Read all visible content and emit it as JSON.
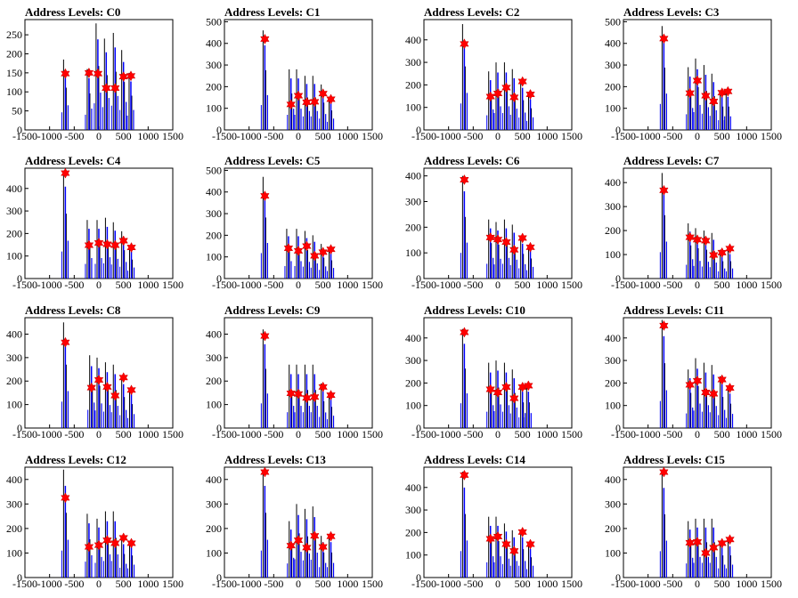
{
  "chart_data": [
    {
      "type": "bar",
      "title": "Address Levels: C0",
      "xlim": [
        -1500,
        1500
      ],
      "ylim": [
        0,
        290
      ],
      "yticks": [
        0,
        50,
        100,
        150,
        200,
        250
      ],
      "xticks": [
        -1500,
        -1000,
        -500,
        0,
        500,
        1000,
        1500
      ],
      "series": [
        {
          "x": [
            -680,
            -200,
            -20,
            150,
            330,
            500,
            650
          ],
          "peak": [
            185,
            160,
            280,
            240,
            255,
            210,
            150
          ],
          "marker": [
            148,
            150,
            148,
            110,
            110,
            140,
            142
          ]
        }
      ]
    },
    {
      "type": "bar",
      "title": "Address Levels: C1",
      "xlim": [
        -1500,
        1500
      ],
      "ylim": [
        0,
        510
      ],
      "yticks": [
        0,
        100,
        200,
        300,
        400,
        500
      ],
      "xticks": [
        -1500,
        -1000,
        -500,
        0,
        500,
        1000,
        1500
      ],
      "series": [
        {
          "x": [
            -680,
            -150,
            0,
            170,
            330,
            500,
            660
          ],
          "peak": [
            460,
            280,
            280,
            250,
            250,
            210,
            150
          ],
          "marker": [
            420,
            118,
            158,
            128,
            130,
            168,
            142
          ]
        }
      ]
    },
    {
      "type": "bar",
      "title": "Address Levels: C2",
      "xlim": [
        -1500,
        1500
      ],
      "ylim": [
        0,
        490
      ],
      "yticks": [
        0,
        100,
        200,
        300,
        400
      ],
      "xticks": [
        -1500,
        -1000,
        -500,
        0,
        500,
        1000,
        1500
      ],
      "series": [
        {
          "x": [
            -680,
            -150,
            0,
            170,
            330,
            500,
            660
          ],
          "peak": [
            470,
            260,
            300,
            300,
            270,
            220,
            160
          ],
          "marker": [
            382,
            148,
            162,
            188,
            145,
            215,
            158
          ]
        }
      ]
    },
    {
      "type": "bar",
      "title": "Address Levels: C3",
      "xlim": [
        -1500,
        1500
      ],
      "ylim": [
        0,
        510
      ],
      "yticks": [
        0,
        100,
        200,
        300,
        400,
        500
      ],
      "xticks": [
        -1500,
        -1000,
        -500,
        0,
        500,
        1000,
        1500
      ],
      "series": [
        {
          "x": [
            -680,
            -150,
            0,
            170,
            330,
            500,
            620
          ],
          "peak": [
            480,
            290,
            330,
            300,
            260,
            180,
            180
          ],
          "marker": [
            422,
            170,
            228,
            158,
            132,
            172,
            178
          ]
        }
      ]
    },
    {
      "type": "bar",
      "title": "Address Levels: C4",
      "xlim": [
        -1500,
        1500
      ],
      "ylim": [
        0,
        490
      ],
      "yticks": [
        0,
        100,
        200,
        300,
        400
      ],
      "xticks": [
        -1500,
        -1000,
        -500,
        0,
        500,
        1000,
        1500
      ],
      "series": [
        {
          "x": [
            -680,
            -200,
            0,
            170,
            330,
            500,
            660
          ],
          "peak": [
            480,
            260,
            260,
            270,
            250,
            210,
            140
          ],
          "marker": [
            468,
            148,
            158,
            152,
            148,
            168,
            138
          ]
        }
      ]
    },
    {
      "type": "bar",
      "title": "Address Levels: C5",
      "xlim": [
        -1500,
        1500
      ],
      "ylim": [
        0,
        510
      ],
      "yticks": [
        0,
        100,
        200,
        300,
        400,
        500
      ],
      "xticks": [
        -1500,
        -1000,
        -500,
        0,
        500,
        1000,
        1500
      ],
      "series": [
        {
          "x": [
            -680,
            -200,
            0,
            170,
            330,
            500,
            660
          ],
          "peak": [
            470,
            230,
            230,
            220,
            200,
            160,
            140
          ],
          "marker": [
            382,
            140,
            128,
            150,
            105,
            122,
            135
          ]
        }
      ]
    },
    {
      "type": "bar",
      "title": "Address Levels: C6",
      "xlim": [
        -1500,
        1500
      ],
      "ylim": [
        0,
        430
      ],
      "yticks": [
        0,
        100,
        200,
        300,
        400
      ],
      "xticks": [
        -1500,
        -1000,
        -500,
        0,
        500,
        1000,
        1500
      ],
      "series": [
        {
          "x": [
            -680,
            -150,
            0,
            170,
            330,
            500,
            660
          ],
          "peak": [
            400,
            230,
            220,
            230,
            210,
            160,
            130
          ],
          "marker": [
            385,
            160,
            152,
            142,
            112,
            158,
            122
          ]
        }
      ]
    },
    {
      "type": "bar",
      "title": "Address Levels: C7",
      "xlim": [
        -1500,
        1500
      ],
      "ylim": [
        0,
        460
      ],
      "yticks": [
        0,
        100,
        200,
        300,
        400
      ],
      "xticks": [
        -1500,
        -1000,
        -500,
        0,
        500,
        1000,
        1500
      ],
      "series": [
        {
          "x": [
            -680,
            -150,
            0,
            170,
            330,
            500,
            660
          ],
          "peak": [
            440,
            230,
            210,
            200,
            190,
            120,
            120
          ],
          "marker": [
            368,
            172,
            162,
            158,
            98,
            108,
            125
          ]
        }
      ]
    },
    {
      "type": "bar",
      "title": "Address Levels: C8",
      "xlim": [
        -1500,
        1500
      ],
      "ylim": [
        0,
        470
      ],
      "yticks": [
        0,
        100,
        200,
        300,
        400
      ],
      "xticks": [
        -1500,
        -1000,
        -500,
        0,
        500,
        1000,
        1500
      ],
      "series": [
        {
          "x": [
            -680,
            -150,
            0,
            170,
            330,
            500,
            660
          ],
          "peak": [
            450,
            310,
            300,
            280,
            270,
            220,
            170
          ],
          "marker": [
            365,
            172,
            205,
            175,
            138,
            215,
            162
          ]
        }
      ]
    },
    {
      "type": "bar",
      "title": "Address Levels: C9",
      "xlim": [
        -1500,
        1500
      ],
      "ylim": [
        0,
        470
      ],
      "yticks": [
        0,
        100,
        200,
        300,
        400
      ],
      "xticks": [
        -1500,
        -1000,
        -500,
        0,
        500,
        1000,
        1500
      ],
      "series": [
        {
          "x": [
            -680,
            -150,
            0,
            170,
            330,
            500,
            660
          ],
          "peak": [
            420,
            270,
            270,
            270,
            270,
            190,
            150
          ],
          "marker": [
            392,
            148,
            145,
            128,
            132,
            175,
            140
          ]
        }
      ]
    },
    {
      "type": "bar",
      "title": "Address Levels: C10",
      "xlim": [
        -1500,
        1500
      ],
      "ylim": [
        0,
        490
      ],
      "yticks": [
        0,
        100,
        200,
        300,
        400
      ],
      "xticks": [
        -1500,
        -1000,
        -500,
        0,
        500,
        1000,
        1500
      ],
      "series": [
        {
          "x": [
            -680,
            -150,
            0,
            170,
            330,
            500,
            620
          ],
          "peak": [
            440,
            290,
            300,
            290,
            260,
            190,
            190
          ],
          "marker": [
            425,
            172,
            158,
            182,
            132,
            182,
            188
          ]
        }
      ]
    },
    {
      "type": "bar",
      "title": "Address Levels: C11",
      "xlim": [
        -1500,
        1500
      ],
      "ylim": [
        0,
        490
      ],
      "yticks": [
        0,
        100,
        200,
        300,
        400
      ],
      "xticks": [
        -1500,
        -1000,
        -500,
        0,
        500,
        1000,
        1500
      ],
      "series": [
        {
          "x": [
            -680,
            -150,
            0,
            170,
            330,
            500,
            660
          ],
          "peak": [
            480,
            260,
            310,
            290,
            280,
            230,
            180
          ],
          "marker": [
            455,
            192,
            210,
            158,
            152,
            215,
            178
          ]
        }
      ]
    },
    {
      "type": "bar",
      "title": "Address Levels: C12",
      "xlim": [
        -1500,
        1500
      ],
      "ylim": [
        0,
        450
      ],
      "yticks": [
        0,
        100,
        200,
        300,
        400
      ],
      "xticks": [
        -1500,
        -1000,
        -500,
        0,
        500,
        1000,
        1500
      ],
      "series": [
        {
          "x": [
            -680,
            -200,
            0,
            170,
            330,
            500,
            660
          ],
          "peak": [
            440,
            260,
            240,
            270,
            270,
            160,
            150
          ],
          "marker": [
            325,
            125,
            132,
            152,
            140,
            162,
            140
          ]
        }
      ]
    },
    {
      "type": "bar",
      "title": "Address Levels: C13",
      "xlim": [
        -1500,
        1500
      ],
      "ylim": [
        0,
        450
      ],
      "yticks": [
        0,
        100,
        200,
        300,
        400
      ],
      "xticks": [
        -1500,
        -1000,
        -500,
        0,
        500,
        1000,
        1500
      ],
      "series": [
        {
          "x": [
            -680,
            -150,
            0,
            170,
            330,
            500,
            660
          ],
          "peak": [
            440,
            230,
            300,
            280,
            290,
            170,
            170
          ],
          "marker": [
            430,
            130,
            152,
            122,
            170,
            125,
            168
          ]
        }
      ]
    },
    {
      "type": "bar",
      "title": "Address Levels: C14",
      "xlim": [
        -1500,
        1500
      ],
      "ylim": [
        0,
        490
      ],
      "yticks": [
        0,
        100,
        200,
        300,
        400
      ],
      "xticks": [
        -1500,
        -1000,
        -500,
        0,
        500,
        1000,
        1500
      ],
      "series": [
        {
          "x": [
            -680,
            -150,
            0,
            170,
            330,
            500,
            660
          ],
          "peak": [
            470,
            270,
            270,
            240,
            210,
            210,
            150
          ],
          "marker": [
            455,
            172,
            182,
            148,
            118,
            202,
            148
          ]
        }
      ]
    },
    {
      "type": "bar",
      "title": "Address Levels: C15",
      "xlim": [
        -1500,
        1500
      ],
      "ylim": [
        0,
        450
      ],
      "yticks": [
        0,
        100,
        200,
        300,
        400
      ],
      "xticks": [
        -1500,
        -1000,
        -500,
        0,
        500,
        1000,
        1500
      ],
      "series": [
        {
          "x": [
            -680,
            -150,
            0,
            170,
            330,
            500,
            660
          ],
          "peak": [
            430,
            230,
            240,
            240,
            240,
            150,
            150
          ],
          "marker": [
            430,
            142,
            145,
            100,
            122,
            140,
            155
          ]
        }
      ]
    }
  ]
}
